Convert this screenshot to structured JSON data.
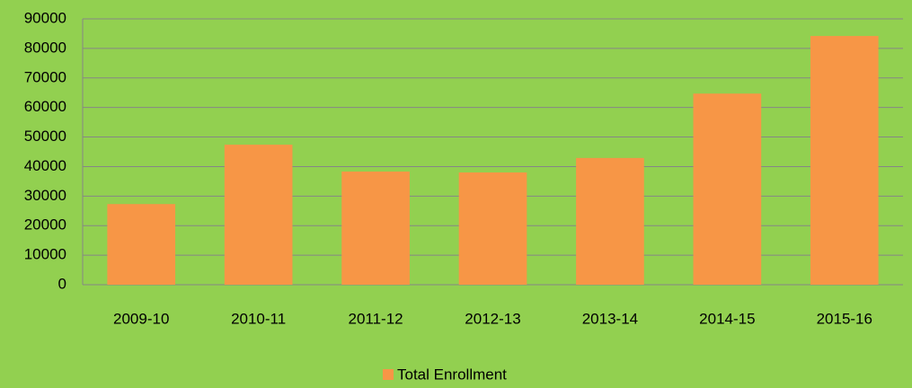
{
  "chart_data": {
    "type": "bar",
    "categories": [
      "2009-10",
      "2010-11",
      "2011-12",
      "2012-13",
      "2013-14",
      "2014-15",
      "2015-16"
    ],
    "series": [
      {
        "name": "Total Enrollment",
        "color": "#f79646",
        "values": [
          27300,
          47400,
          38300,
          38000,
          42900,
          64700,
          84200
        ]
      }
    ],
    "ylim": [
      0,
      90000
    ],
    "yticks": [
      0,
      10000,
      20000,
      30000,
      40000,
      50000,
      60000,
      70000,
      80000,
      90000
    ],
    "grid": true,
    "legend": "bottom"
  }
}
